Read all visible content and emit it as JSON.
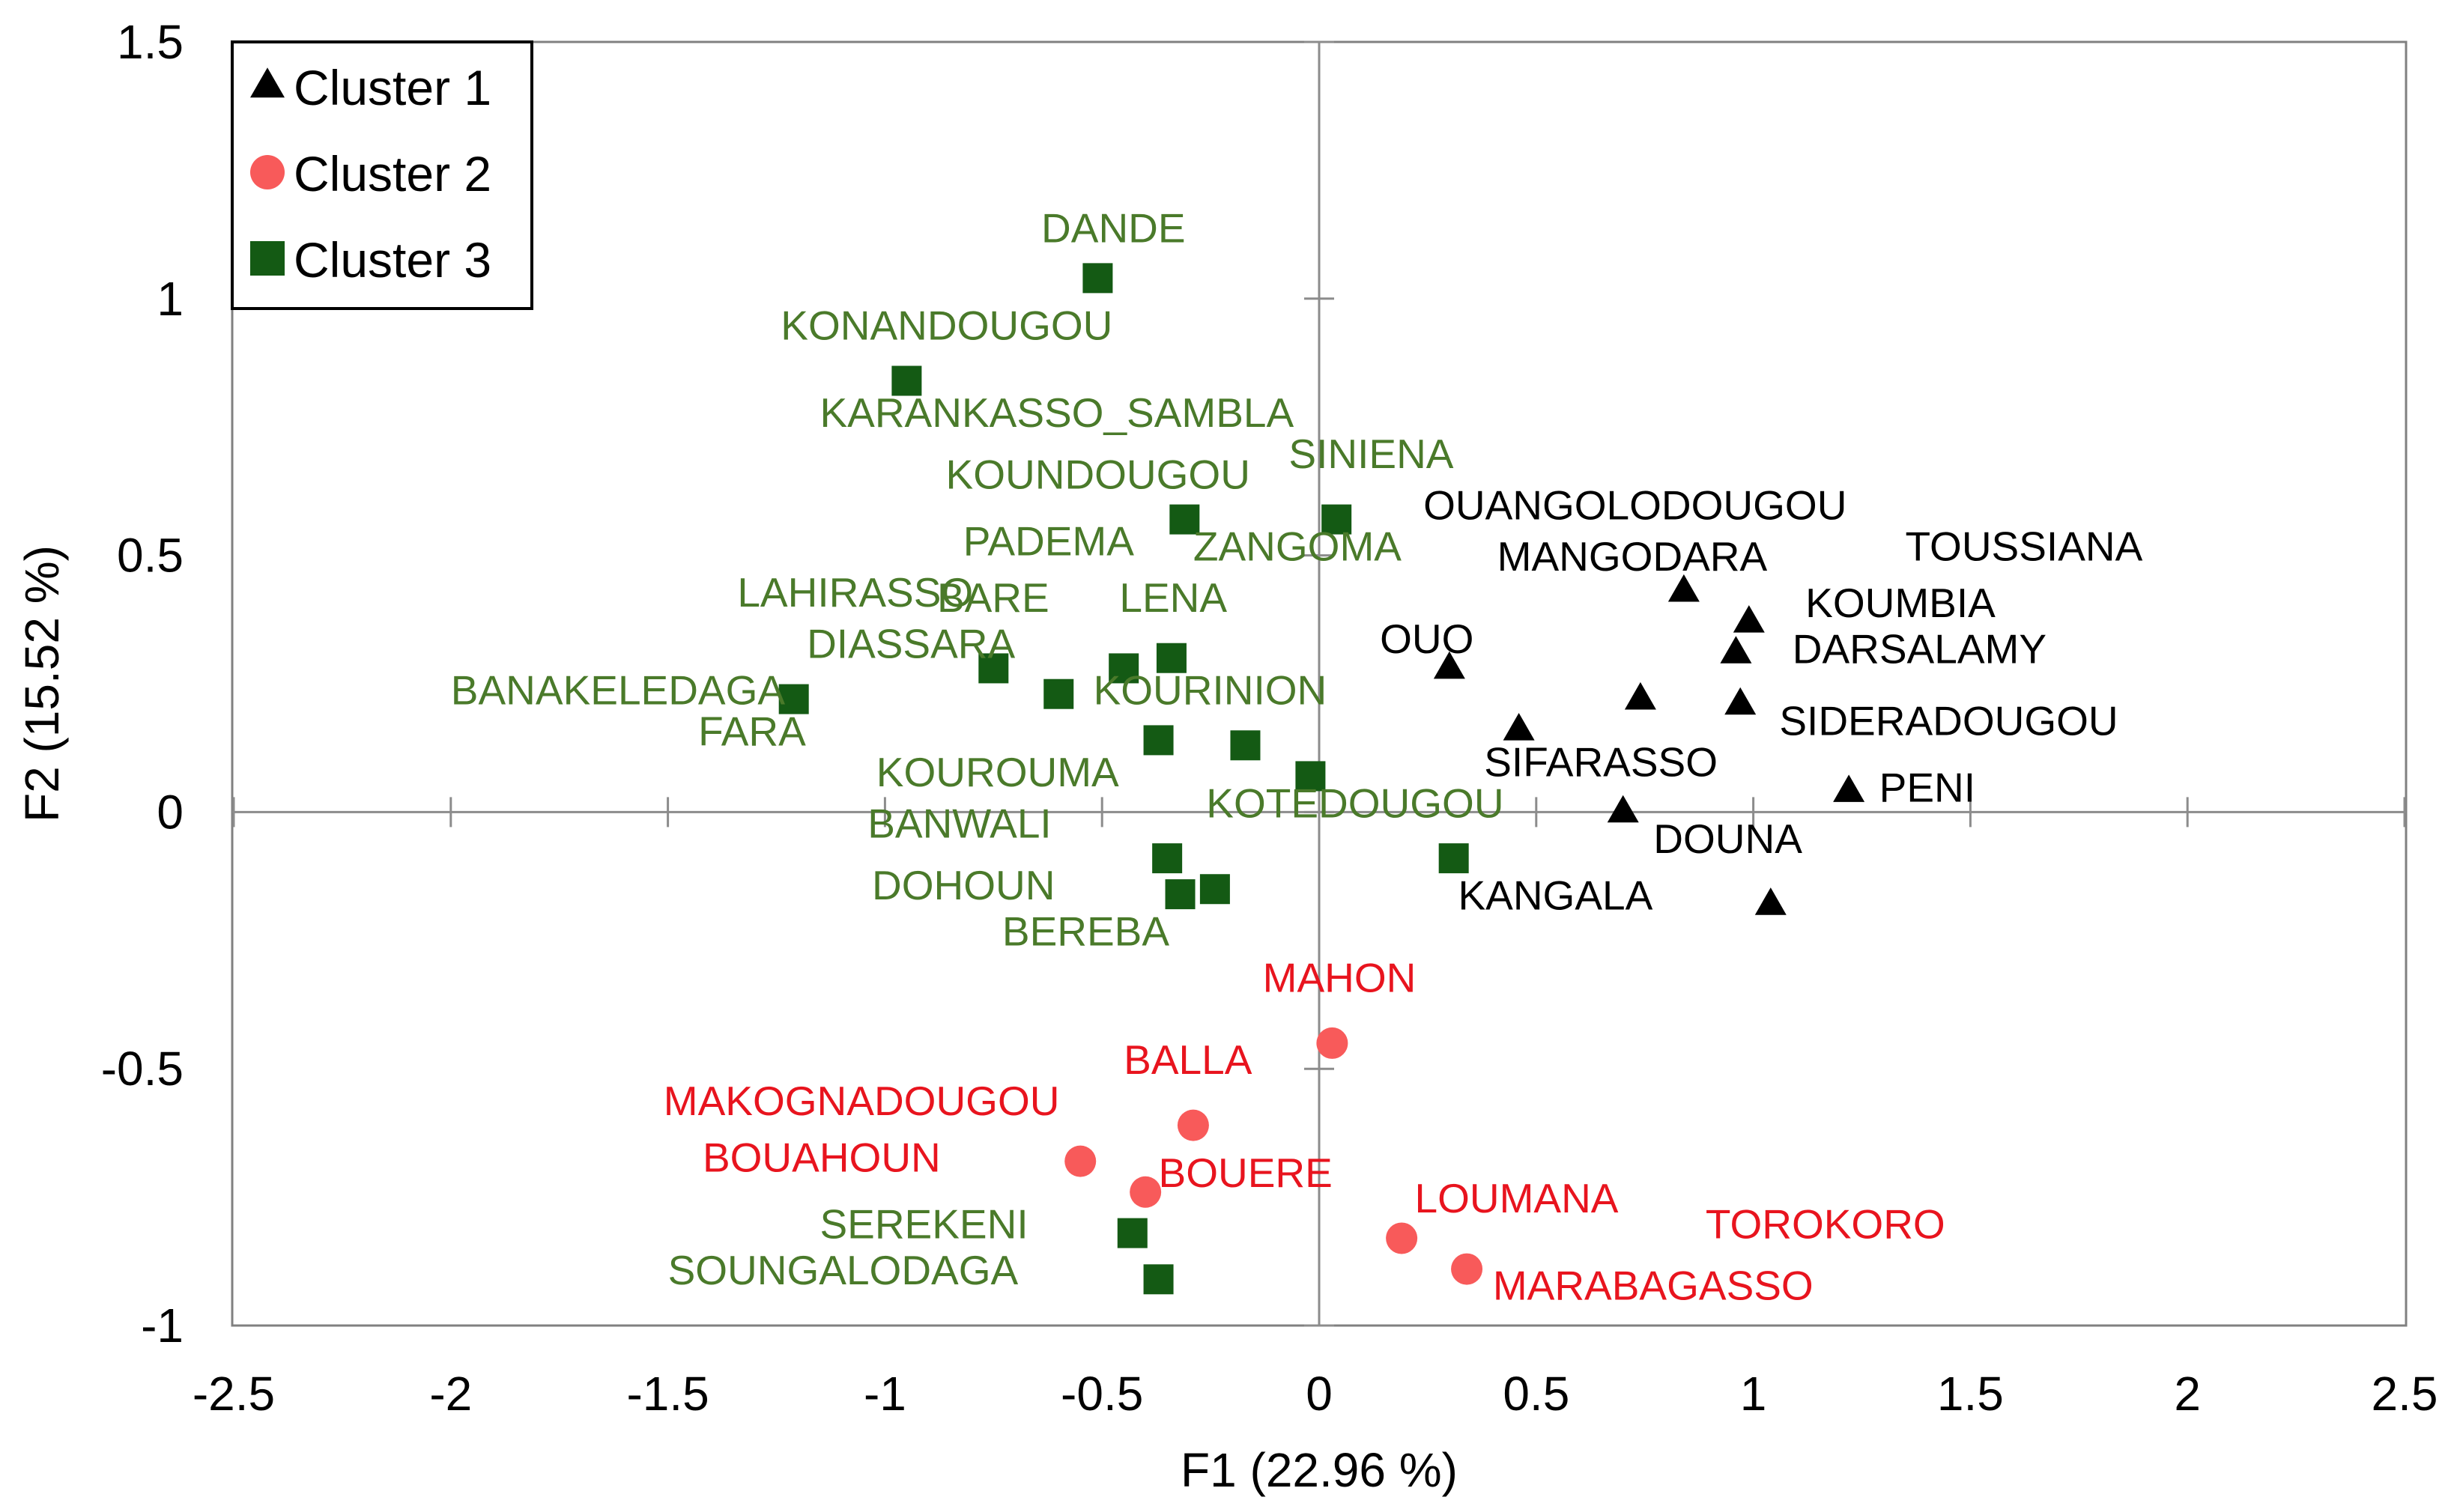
{
  "chart_data": {
    "type": "scatter",
    "xlabel": "F1 (22.96 %)",
    "ylabel": "F2 (15.52 %)",
    "xlim": [
      -2.5,
      2.5
    ],
    "ylim": [
      -1,
      1.5
    ],
    "xticks": [
      -2.5,
      -2,
      -1.5,
      -1,
      -0.5,
      0,
      0.5,
      1,
      1.5,
      2,
      2.5
    ],
    "yticks": [
      -1,
      -0.5,
      0,
      0.5,
      1,
      1.5
    ],
    "xtick_labels": [
      "-2.5",
      "-2",
      "-1.5",
      "-1",
      "-0.5",
      "0",
      "0.5",
      "1",
      "1.5",
      "2",
      "2.5"
    ],
    "ytick_labels": [
      "-1",
      "-0.5",
      "0",
      "0.5",
      "1",
      "1.5"
    ],
    "legend_position": "top-left",
    "series": [
      {
        "name": "Cluster 1",
        "marker": "triangle",
        "color": "#000000",
        "points": [
          {
            "x": 0.3,
            "y": 0.28
          },
          {
            "x": 0.46,
            "y": 0.16
          },
          {
            "x": 0.74,
            "y": 0.22
          },
          {
            "x": 0.84,
            "y": 0.43
          },
          {
            "x": 0.96,
            "y": 0.31
          },
          {
            "x": 0.99,
            "y": 0.37
          },
          {
            "x": 0.97,
            "y": 0.21
          },
          {
            "x": 0.7,
            "y": 0.0
          },
          {
            "x": 1.22,
            "y": 0.04
          },
          {
            "x": 1.04,
            "y": -0.18
          }
        ]
      },
      {
        "name": "Cluster 2",
        "marker": "circle",
        "color": "#f85a5a",
        "points": [
          {
            "x": 0.03,
            "y": -0.45
          },
          {
            "x": -0.29,
            "y": -0.61
          },
          {
            "x": -0.55,
            "y": -0.68
          },
          {
            "x": -0.4,
            "y": -0.74
          },
          {
            "x": 0.19,
            "y": -0.83
          },
          {
            "x": 0.34,
            "y": -0.89
          }
        ]
      },
      {
        "name": "Cluster 3",
        "marker": "square",
        "color": "#145a14",
        "points": [
          {
            "x": -0.51,
            "y": 1.04
          },
          {
            "x": -0.95,
            "y": 0.84
          },
          {
            "x": -0.31,
            "y": 0.57
          },
          {
            "x": 0.04,
            "y": 0.57
          },
          {
            "x": -0.75,
            "y": 0.28
          },
          {
            "x": -0.6,
            "y": 0.23
          },
          {
            "x": -0.45,
            "y": 0.28
          },
          {
            "x": -0.34,
            "y": 0.3
          },
          {
            "x": -1.21,
            "y": 0.22
          },
          {
            "x": -0.37,
            "y": 0.14
          },
          {
            "x": -0.17,
            "y": 0.13
          },
          {
            "x": -0.02,
            "y": 0.07
          },
          {
            "x": 0.31,
            "y": -0.09
          },
          {
            "x": -0.35,
            "y": -0.09
          },
          {
            "x": -0.32,
            "y": -0.16
          },
          {
            "x": -0.24,
            "y": -0.15
          },
          {
            "x": -0.43,
            "y": -0.82
          },
          {
            "x": -0.37,
            "y": -0.91
          }
        ]
      }
    ],
    "annotations": [
      {
        "text": "DANDE",
        "x": -0.64,
        "y": 1.11,
        "color": "#4a7a2a"
      },
      {
        "text": "KONANDOUGOU",
        "x": -1.24,
        "y": 0.92,
        "color": "#4a7a2a"
      },
      {
        "text": "KARANKASSO_SAMBLA",
        "x": -1.15,
        "y": 0.75,
        "color": "#4a7a2a"
      },
      {
        "text": "KOUNDOUGOU",
        "x": -0.86,
        "y": 0.63,
        "color": "#4a7a2a"
      },
      {
        "text": "SINIENA",
        "x": -0.07,
        "y": 0.67,
        "color": "#4a7a2a"
      },
      {
        "text": "PADEMA",
        "x": -0.82,
        "y": 0.5,
        "color": "#4a7a2a"
      },
      {
        "text": "ZANGOMA",
        "x": -0.29,
        "y": 0.49,
        "color": "#4a7a2a"
      },
      {
        "text": "LAHIRASSO",
        "x": -1.34,
        "y": 0.4,
        "color": "#4a7a2a"
      },
      {
        "text": "BARE",
        "x": -0.88,
        "y": 0.39,
        "color": "#4a7a2a"
      },
      {
        "text": "LENA",
        "x": -0.46,
        "y": 0.39,
        "color": "#4a7a2a"
      },
      {
        "text": "DIASSARA",
        "x": -1.18,
        "y": 0.3,
        "color": "#4a7a2a"
      },
      {
        "text": "BANAKELEDAGA",
        "x": -2.0,
        "y": 0.21,
        "color": "#4a7a2a"
      },
      {
        "text": "KOURINION",
        "x": -0.52,
        "y": 0.21,
        "color": "#4a7a2a"
      },
      {
        "text": "FARA",
        "x": -1.43,
        "y": 0.13,
        "color": "#4a7a2a"
      },
      {
        "text": "KOUROUMA",
        "x": -1.02,
        "y": 0.05,
        "color": "#4a7a2a"
      },
      {
        "text": "KOTEDOUGOU",
        "x": -0.26,
        "y": -0.01,
        "color": "#4a7a2a"
      },
      {
        "text": "BANWALI",
        "x": -1.04,
        "y": -0.05,
        "color": "#4a7a2a"
      },
      {
        "text": "DOHOUN",
        "x": -1.03,
        "y": -0.17,
        "color": "#4a7a2a"
      },
      {
        "text": "BEREBA",
        "x": -0.73,
        "y": -0.26,
        "color": "#4a7a2a"
      },
      {
        "text": "SEREKENI",
        "x": -1.15,
        "y": -0.83,
        "color": "#4a7a2a"
      },
      {
        "text": "SOUNGALODAGA",
        "x": -1.5,
        "y": -0.92,
        "color": "#4a7a2a"
      },
      {
        "text": "OUANGOLODOUGOU",
        "x": 0.24,
        "y": 0.57,
        "color": "#000000"
      },
      {
        "text": "TOUSSIANA",
        "x": 1.35,
        "y": 0.49,
        "color": "#000000"
      },
      {
        "text": "MANGODARA",
        "x": 0.41,
        "y": 0.47,
        "color": "#000000"
      },
      {
        "text": "KOUMBIA",
        "x": 1.12,
        "y": 0.38,
        "color": "#000000"
      },
      {
        "text": "DARSALAMY",
        "x": 1.09,
        "y": 0.29,
        "color": "#000000"
      },
      {
        "text": "OUO",
        "x": 0.14,
        "y": 0.31,
        "color": "#000000"
      },
      {
        "text": "SIDERADOUGOU",
        "x": 1.06,
        "y": 0.15,
        "color": "#000000"
      },
      {
        "text": "SIFARASSO",
        "x": 0.38,
        "y": 0.07,
        "color": "#000000"
      },
      {
        "text": "PENI",
        "x": 1.29,
        "y": 0.02,
        "color": "#000000"
      },
      {
        "text": "DOUNA",
        "x": 0.77,
        "y": -0.08,
        "color": "#000000"
      },
      {
        "text": "KANGALA",
        "x": 0.32,
        "y": -0.19,
        "color": "#000000"
      },
      {
        "text": "MAHON",
        "x": -0.13,
        "y": -0.35,
        "color": "#e8141e"
      },
      {
        "text": "BALLA",
        "x": -0.45,
        "y": -0.51,
        "color": "#e8141e"
      },
      {
        "text": "MAKOGNADOUGOU",
        "x": -1.51,
        "y": -0.59,
        "color": "#e8141e"
      },
      {
        "text": "BOUAHOUN",
        "x": -1.42,
        "y": -0.7,
        "color": "#e8141e"
      },
      {
        "text": "BOUERE",
        "x": -0.37,
        "y": -0.73,
        "color": "#e8141e"
      },
      {
        "text": "LOUMANA",
        "x": 0.22,
        "y": -0.78,
        "color": "#e8141e"
      },
      {
        "text": "TOROKORO",
        "x": 0.89,
        "y": -0.83,
        "color": "#e8141e"
      },
      {
        "text": "MARABAGASSO",
        "x": 0.4,
        "y": -0.95,
        "color": "#e8141e"
      }
    ]
  }
}
